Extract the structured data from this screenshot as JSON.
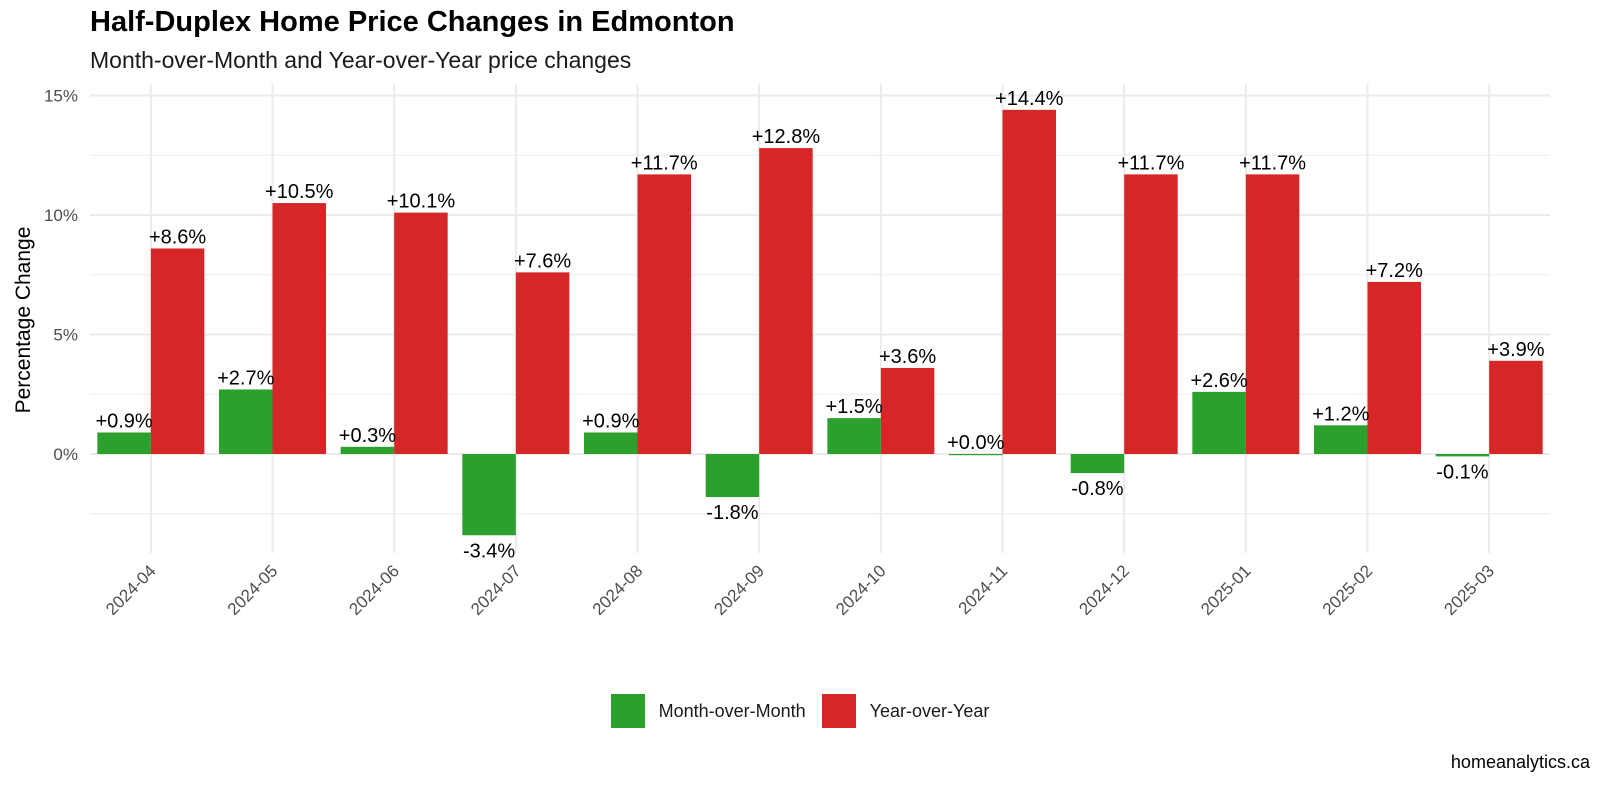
{
  "title": "Half-Duplex Home Price Changes in Edmonton",
  "subtitle": "Month-over-Month and Year-over-Year price changes",
  "caption": "homeanalytics.ca",
  "colors": {
    "mom": "#2ca02c",
    "yoy": "#d62728",
    "grid": "#ebebeb",
    "tick_text": "#4d4d4d"
  },
  "chart_data": {
    "type": "bar",
    "ylabel": "Percentage Change",
    "xlabel": "",
    "ylim": [
      -3.5,
      15.4
    ],
    "yticks": [
      0,
      5,
      10,
      15
    ],
    "ytick_labels": [
      "0%",
      "5%",
      "10%",
      "15%"
    ],
    "grid": true,
    "legend_position": "bottom",
    "categories": [
      "2024-04",
      "2024-05",
      "2024-06",
      "2024-07",
      "2024-08",
      "2024-09",
      "2024-10",
      "2024-11",
      "2024-12",
      "2025-01",
      "2025-02",
      "2025-03"
    ],
    "series": [
      {
        "name": "Month-over-Month",
        "values": [
          0.9,
          2.7,
          0.3,
          -3.4,
          0.9,
          -1.8,
          1.5,
          0.0,
          -0.8,
          2.6,
          1.2,
          -0.1
        ],
        "labels": [
          "+0.9%",
          "+2.7%",
          "+0.3%",
          "-3.4%",
          "+0.9%",
          "-1.8%",
          "+1.5%",
          "+0.0%",
          "-0.8%",
          "+2.6%",
          "+1.2%",
          "-0.1%"
        ]
      },
      {
        "name": "Year-over-Year",
        "values": [
          8.6,
          10.5,
          10.1,
          7.6,
          11.7,
          12.8,
          3.6,
          14.4,
          11.7,
          11.7,
          7.2,
          3.9
        ],
        "labels": [
          "+8.6%",
          "+10.5%",
          "+10.1%",
          "+7.6%",
          "+11.7%",
          "+12.8%",
          "+3.6%",
          "+14.4%",
          "+11.7%",
          "+11.7%",
          "+7.2%",
          "+3.9%"
        ]
      }
    ]
  }
}
